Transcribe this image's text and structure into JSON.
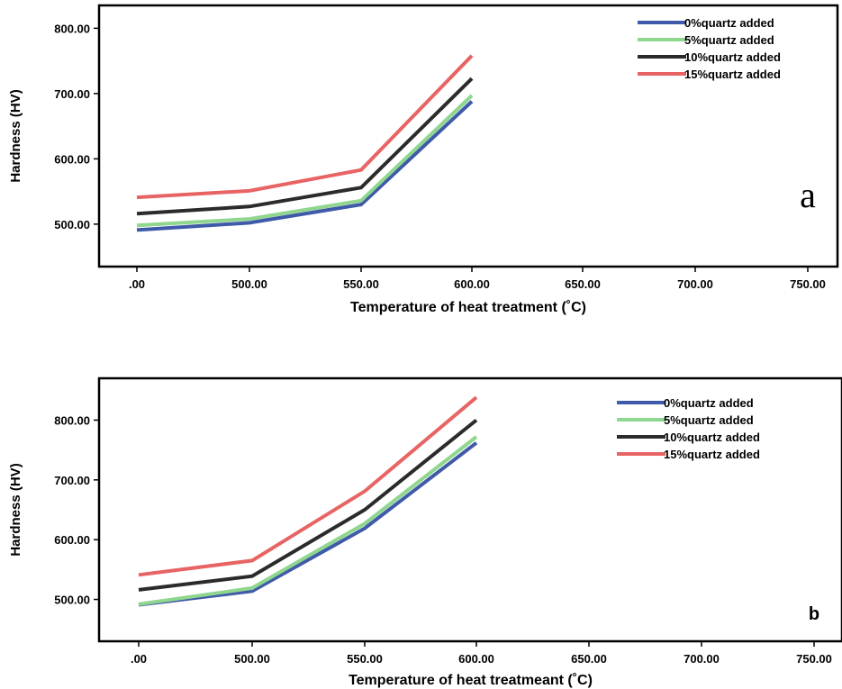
{
  "chart_data": [
    {
      "type": "line",
      "panel_label": "a",
      "xlabel": "Temperature of heat treatment (˚C)",
      "ylabel": "Hardness (HV)",
      "x_tick_labels": [
        ".00",
        "500.00",
        "550.00",
        "600.00",
        "650.00",
        "700.00",
        "750.00"
      ],
      "y_tick_labels": [
        "500.00",
        "600.00",
        "700.00",
        "800.00"
      ],
      "ylim": [
        435,
        835
      ],
      "legend_position": "top-right",
      "grid": false,
      "series": [
        {
          "name": "0%quartz added",
          "color": "#3f5aa8",
          "values": [
            491,
            502,
            530,
            688
          ]
        },
        {
          "name": "5%quartz added",
          "color": "#8fd68f",
          "values": [
            498,
            508,
            536,
            697
          ]
        },
        {
          "name": "10%quartz added",
          "color": "#2b2b2b",
          "values": [
            516,
            527,
            556,
            723
          ]
        },
        {
          "name": "15%quartz added",
          "color": "#e86464",
          "values": [
            541,
            551,
            583,
            758
          ]
        }
      ]
    },
    {
      "type": "line",
      "panel_label": "b",
      "xlabel": "Temperature of heat treatmeant (˚C)",
      "ylabel": "Hardness (HV)",
      "x_tick_labels": [
        ".00",
        "500.00",
        "550.00",
        "600.00",
        "650.00",
        "700.00",
        "750.00"
      ],
      "y_tick_labels": [
        "500.00",
        "600.00",
        "700.00",
        "800.00"
      ],
      "ylim": [
        430,
        870
      ],
      "legend_position": "top-right",
      "grid": false,
      "series": [
        {
          "name": "0%quartz added",
          "color": "#3f5aa8",
          "values": [
            491,
            514,
            619,
            762
          ]
        },
        {
          "name": "5%quartz added",
          "color": "#8fd68f",
          "values": [
            492,
            519,
            627,
            772
          ]
        },
        {
          "name": "10%quartz added",
          "color": "#2b2b2b",
          "values": [
            516,
            539,
            650,
            800
          ]
        },
        {
          "name": "15%quartz added",
          "color": "#e86464",
          "values": [
            541,
            565,
            681,
            838
          ]
        }
      ]
    }
  ]
}
